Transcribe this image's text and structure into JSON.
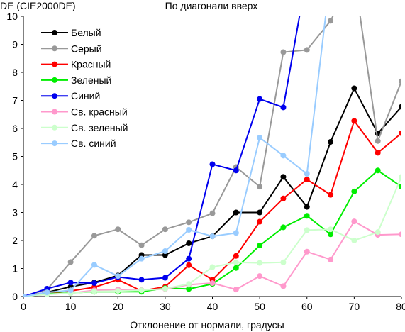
{
  "chart_data": {
    "type": "line",
    "title": "По диагонали вверх",
    "ylabel": "DE (CIE2000DE)",
    "xlabel": "Отклонение от нормали, градусы",
    "x": [
      0,
      5,
      10,
      15,
      20,
      25,
      30,
      35,
      40,
      45,
      50,
      55,
      60,
      65,
      70,
      75,
      80
    ],
    "xlim": [
      0,
      80
    ],
    "ylim": [
      0,
      10
    ],
    "x_ticks": [
      "0",
      "10",
      "20",
      "30",
      "40",
      "50",
      "60",
      "70",
      "80"
    ],
    "y_ticks": [
      "0",
      "1",
      "2",
      "3",
      "4",
      "5",
      "6",
      "7",
      "8",
      "9",
      "10"
    ],
    "grid": false,
    "legend_position": "top-left",
    "series": [
      {
        "name": "Белый",
        "color": "#000000",
        "values": [
          0,
          0.15,
          0.35,
          0.5,
          0.75,
          1.48,
          1.48,
          1.9,
          2.15,
          3.0,
          3.0,
          4.27,
          3.2,
          5.52,
          7.43,
          5.82,
          6.77
        ]
      },
      {
        "name": "Серый",
        "color": "#999999",
        "values": [
          0,
          0.25,
          1.23,
          2.17,
          2.4,
          1.83,
          2.4,
          2.65,
          2.97,
          4.62,
          3.92,
          8.72,
          8.8,
          9.84,
          11.5,
          5.55,
          7.68
        ]
      },
      {
        "name": "Красный",
        "color": "#ff0000",
        "values": [
          0,
          0.12,
          0.2,
          0.33,
          0.6,
          0.2,
          0.35,
          1.12,
          0.6,
          1.45,
          2.67,
          3.5,
          4.18,
          3.63,
          6.27,
          5.13,
          5.83
        ]
      },
      {
        "name": "Зеленый",
        "color": "#00ee00",
        "values": [
          0,
          0.1,
          0.13,
          0.17,
          0.17,
          0.17,
          0.3,
          0.27,
          0.45,
          1.02,
          1.82,
          2.47,
          2.88,
          2.22,
          3.75,
          4.5,
          3.92
        ]
      },
      {
        "name": "Синий",
        "color": "#0000ee",
        "values": [
          0,
          0.28,
          0.5,
          0.48,
          0.7,
          0.6,
          0.67,
          1.35,
          4.72,
          4.5,
          7.05,
          6.75,
          11.5,
          null,
          null,
          null,
          null
        ]
      },
      {
        "name": "Св. красный",
        "color": "#ff99cc",
        "values": [
          0,
          0.08,
          0.12,
          0.22,
          0.25,
          0.23,
          0.27,
          0.42,
          0.48,
          0.25,
          0.73,
          0.37,
          1.6,
          1.32,
          2.68,
          2.2,
          2.22
        ]
      },
      {
        "name": "Св. зеленый",
        "color": "#ccffcc",
        "values": [
          0,
          0.08,
          0.12,
          0.18,
          0.2,
          0.22,
          0.28,
          0.45,
          1.05,
          1.22,
          1.2,
          1.22,
          2.37,
          2.4,
          2.0,
          2.3,
          4.27
        ]
      },
      {
        "name": "Св. синий",
        "color": "#99ccff",
        "values": [
          0,
          0.15,
          0.22,
          1.13,
          0.73,
          1.35,
          1.62,
          2.38,
          2.15,
          2.27,
          5.67,
          5.03,
          4.38,
          11.5,
          null,
          null,
          null
        ]
      }
    ]
  }
}
